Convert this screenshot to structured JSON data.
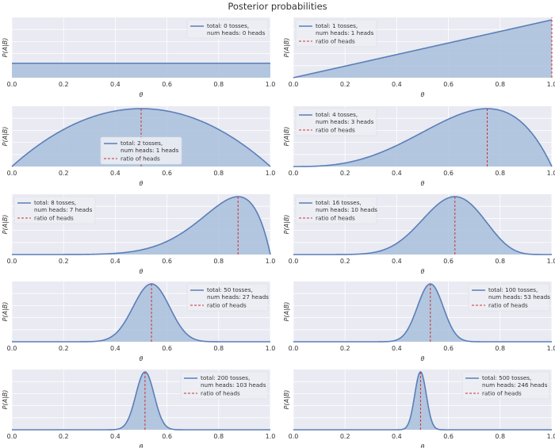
{
  "figure": {
    "title": "Posterior probabilities"
  },
  "colors": {
    "panel_bg": "#e9eaf2",
    "grid": "#ffffff",
    "curve": "#5a7fb8",
    "fill": "#a9c0dc",
    "ratio_line": "#cc3333",
    "text": "#333333"
  },
  "chart_data": [
    {
      "type": "area",
      "tosses": 0,
      "heads": 0,
      "legend": [
        "total: 0 tosses,",
        "num heads: 0 heads"
      ],
      "legend_loc": "top-right",
      "xlabel": "θ",
      "ylabel": "P(A|B)",
      "xlim": [
        0,
        1
      ],
      "xticks": [
        "0.0",
        "0.2",
        "0.4",
        "0.6",
        "0.8",
        "1.0"
      ]
    },
    {
      "type": "area",
      "tosses": 1,
      "heads": 1,
      "legend": [
        "total: 1 tosses,",
        "num heads: 1 heads",
        "ratio of heads"
      ],
      "legend_loc": "top-left",
      "xlabel": "θ",
      "ylabel": "P(A|B)",
      "xlim": [
        0,
        1
      ],
      "xticks": [
        "0.0",
        "0.2",
        "0.4",
        "0.6",
        "0.8",
        "1.0"
      ]
    },
    {
      "type": "area",
      "tosses": 2,
      "heads": 1,
      "legend": [
        "total: 2 tosses,",
        "num heads: 1 heads",
        "ratio of heads"
      ],
      "legend_loc": "lower-center",
      "xlabel": "θ",
      "ylabel": "P(A|B)",
      "xlim": [
        0,
        1
      ],
      "xticks": [
        "0.0",
        "0.2",
        "0.4",
        "0.6",
        "0.8",
        "1.0"
      ]
    },
    {
      "type": "area",
      "tosses": 4,
      "heads": 3,
      "legend": [
        "total: 4 tosses,",
        "num heads: 3 heads",
        "ratio of heads"
      ],
      "legend_loc": "top-left",
      "xlabel": "θ",
      "ylabel": "P(A|B)",
      "xlim": [
        0,
        1
      ],
      "xticks": [
        "0.0",
        "0.2",
        "0.4",
        "0.6",
        "0.8",
        "1.0"
      ]
    },
    {
      "type": "area",
      "tosses": 8,
      "heads": 7,
      "legend": [
        "total: 8 tosses,",
        "num heads: 7 heads",
        "ratio of heads"
      ],
      "legend_loc": "top-left",
      "xlabel": "θ",
      "ylabel": "P(A|B)",
      "xlim": [
        0,
        1
      ],
      "xticks": [
        "0.0",
        "0.2",
        "0.4",
        "0.6",
        "0.8",
        "1.0"
      ]
    },
    {
      "type": "area",
      "tosses": 16,
      "heads": 10,
      "legend": [
        "total: 16 tosses,",
        "num heads: 10 heads",
        "ratio of heads"
      ],
      "legend_loc": "top-left",
      "xlabel": "θ",
      "ylabel": "P(A|B)",
      "xlim": [
        0,
        1
      ],
      "xticks": [
        "0.0",
        "0.2",
        "0.4",
        "0.6",
        "0.8",
        "1.0"
      ]
    },
    {
      "type": "area",
      "tosses": 50,
      "heads": 27,
      "legend": [
        "total: 50 tosses,",
        "num heads: 27 heads",
        "ratio of heads"
      ],
      "legend_loc": "top-right",
      "xlabel": "θ",
      "ylabel": "P(A|B)",
      "xlim": [
        0,
        1
      ],
      "xticks": [
        "0.0",
        "0.2",
        "0.4",
        "0.6",
        "0.8",
        "1.0"
      ]
    },
    {
      "type": "area",
      "tosses": 100,
      "heads": 53,
      "legend": [
        "total: 100 tosses,",
        "num heads: 53 heads",
        "ratio of heads"
      ],
      "legend_loc": "top-right",
      "xlabel": "θ",
      "ylabel": "P(A|B)",
      "xlim": [
        0,
        1
      ],
      "xticks": [
        "0.0",
        "0.2",
        "0.4",
        "0.6",
        "0.8",
        "1.0"
      ]
    },
    {
      "type": "area",
      "tosses": 200,
      "heads": 103,
      "legend": [
        "total: 200 tosses,",
        "num heads: 103 heads",
        "ratio of heads"
      ],
      "legend_loc": "top-right",
      "xlabel": "θ",
      "ylabel": "P(A|B)",
      "xlim": [
        0,
        1
      ],
      "xticks": [
        "0.0",
        "0.2",
        "0.4",
        "0.6",
        "0.8",
        "1.0"
      ]
    },
    {
      "type": "area",
      "tosses": 500,
      "heads": 246,
      "legend": [
        "total: 500 tosses,",
        "num heads: 246 heads",
        "ratio of heads"
      ],
      "legend_loc": "top-right",
      "xlabel": "θ",
      "ylabel": "P(A|B)",
      "xlim": [
        0,
        1
      ],
      "xticks": [
        "0.0",
        "0.2",
        "0.4",
        "0.6",
        "0.8",
        "1.0"
      ]
    }
  ]
}
